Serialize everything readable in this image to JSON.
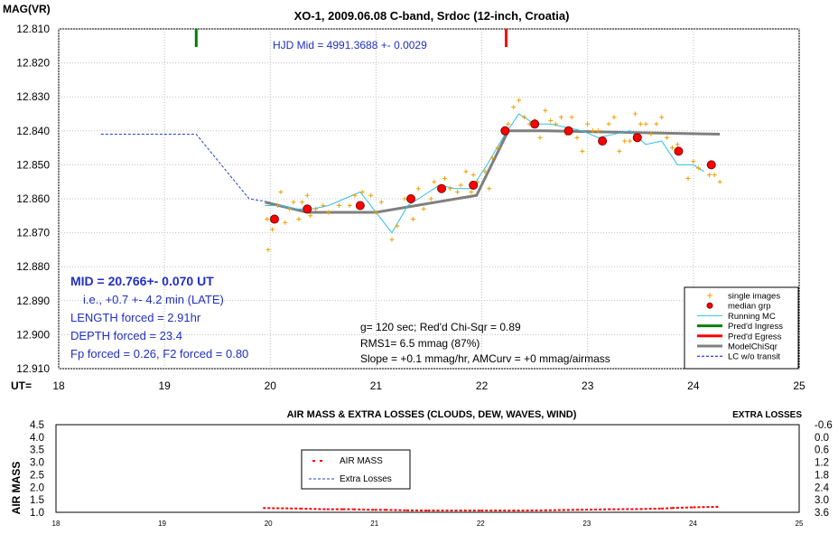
{
  "chart_data": [
    {
      "type": "scatter",
      "title": "XO-1, 2009.06.08 C-band, Srdoc (12-inch, Croatia)",
      "ylabel": "MAG(VR)",
      "xlabel": "UT=",
      "xlim": [
        18,
        25
      ],
      "ylim": [
        12.91,
        12.81
      ],
      "y_inverted": true,
      "grid": true,
      "legend_position": "bottom-right",
      "x_ticks": [
        "18",
        "19",
        "20",
        "21",
        "22",
        "23",
        "24",
        "25"
      ],
      "y_ticks": [
        "12.810",
        "12.820",
        "12.830",
        "12.840",
        "12.850",
        "12.860",
        "12.870",
        "12.880",
        "12.890",
        "12.900",
        "12.910"
      ],
      "annotations": {
        "hjd": "HJD Mid = 4991.3688 +- 0.0029",
        "mid": "MID = 20.766+- 0.070 UT",
        "ie": "i.e., +0.7 +- 4.2 min (LATE)",
        "length": "LENGTH forced = 2.91hr",
        "depth": "DEPTH forced = 23.4",
        "fp": "Fp forced = 0.26, F2 forced = 0.80",
        "stats1": "g= 120 sec; Red'd Chi-Sqr = 0.89",
        "stats2": "RMS1= 6.5 mmag (87%)",
        "stats3": "Slope = +0.1 mmag/hr, AMCurv = +0 mmag/airmass"
      },
      "legend": [
        {
          "label": "single images",
          "symbol": "plus",
          "color": "#f0a000"
        },
        {
          "label": "median grp",
          "symbol": "dot",
          "color": "#ff0000"
        },
        {
          "label": "Running MC",
          "symbol": "line",
          "color": "#30c0e0"
        },
        {
          "label": "Pred'd Ingress",
          "symbol": "line",
          "color": "#008000"
        },
        {
          "label": "Pred'd Egress",
          "symbol": "line",
          "color": "#ff0000"
        },
        {
          "label": "ModelChiSqr",
          "symbol": "line",
          "color": "#808080"
        },
        {
          "label": "LC w/o transit",
          "symbol": "dash",
          "color": "#0000ff"
        }
      ],
      "series": [
        {
          "name": "single images",
          "points": [
            [
              19.97,
              12.866
            ],
            [
              19.98,
              12.875
            ],
            [
              20.02,
              12.869
            ],
            [
              20.07,
              12.862
            ],
            [
              20.1,
              12.858
            ],
            [
              20.14,
              12.867
            ],
            [
              20.18,
              12.863
            ],
            [
              20.22,
              12.861
            ],
            [
              20.27,
              12.866
            ],
            [
              20.3,
              12.861
            ],
            [
              20.35,
              12.859
            ],
            [
              20.38,
              12.865
            ],
            [
              20.43,
              12.863
            ],
            [
              20.5,
              12.862
            ],
            [
              20.55,
              12.864
            ],
            [
              20.65,
              12.862
            ],
            [
              20.75,
              12.862
            ],
            [
              20.8,
              12.859
            ],
            [
              20.87,
              12.858
            ],
            [
              20.95,
              12.859
            ],
            [
              21.0,
              12.864
            ],
            [
              21.05,
              12.861
            ],
            [
              21.15,
              12.872
            ],
            [
              21.2,
              12.868
            ],
            [
              21.27,
              12.86
            ],
            [
              21.35,
              12.866
            ],
            [
              21.4,
              12.857
            ],
            [
              21.45,
              12.863
            ],
            [
              21.52,
              12.86
            ],
            [
              21.55,
              12.855
            ],
            [
              21.6,
              12.857
            ],
            [
              21.65,
              12.854
            ],
            [
              21.7,
              12.857
            ],
            [
              21.77,
              12.858
            ],
            [
              21.8,
              12.856
            ],
            [
              21.85,
              12.852
            ],
            [
              21.9,
              12.858
            ],
            [
              21.92,
              12.853
            ],
            [
              21.96,
              12.855
            ],
            [
              22.03,
              12.852
            ],
            [
              22.07,
              12.857
            ],
            [
              22.1,
              12.848
            ],
            [
              22.15,
              12.845
            ],
            [
              22.2,
              12.84
            ],
            [
              22.25,
              12.838
            ],
            [
              22.3,
              12.833
            ],
            [
              22.35,
              12.831
            ],
            [
              22.4,
              12.836
            ],
            [
              22.45,
              12.838
            ],
            [
              22.5,
              12.837
            ],
            [
              22.55,
              12.842
            ],
            [
              22.6,
              12.834
            ],
            [
              22.65,
              12.837
            ],
            [
              22.7,
              12.838
            ],
            [
              22.75,
              12.836
            ],
            [
              22.8,
              12.841
            ],
            [
              22.85,
              12.836
            ],
            [
              22.9,
              12.842
            ],
            [
              22.95,
              12.846
            ],
            [
              23.0,
              12.838
            ],
            [
              23.05,
              12.84
            ],
            [
              23.1,
              12.84
            ],
            [
              23.15,
              12.842
            ],
            [
              23.2,
              12.838
            ],
            [
              23.25,
              12.836
            ],
            [
              23.3,
              12.846
            ],
            [
              23.35,
              12.843
            ],
            [
              23.4,
              12.843
            ],
            [
              23.45,
              12.835
            ],
            [
              23.5,
              12.838
            ],
            [
              23.55,
              12.838
            ],
            [
              23.6,
              12.841
            ],
            [
              23.65,
              12.838
            ],
            [
              23.7,
              12.836
            ],
            [
              23.75,
              12.842
            ],
            [
              23.8,
              12.845
            ],
            [
              23.85,
              12.844
            ],
            [
              23.95,
              12.854
            ],
            [
              24.0,
              12.849
            ],
            [
              24.05,
              12.851
            ],
            [
              24.15,
              12.853
            ],
            [
              24.2,
              12.853
            ],
            [
              24.25,
              12.855
            ]
          ]
        },
        {
          "name": "median grp",
          "points": [
            [
              20.04,
              12.866
            ],
            [
              20.35,
              12.863
            ],
            [
              20.85,
              12.862
            ],
            [
              21.33,
              12.86
            ],
            [
              21.62,
              12.857
            ],
            [
              21.92,
              12.856
            ],
            [
              22.22,
              12.84
            ],
            [
              22.5,
              12.838
            ],
            [
              22.82,
              12.84
            ],
            [
              23.14,
              12.843
            ],
            [
              23.47,
              12.842
            ],
            [
              23.86,
              12.846
            ],
            [
              24.17,
              12.85
            ]
          ]
        },
        {
          "name": "Running MC",
          "points": [
            [
              19.95,
              12.862
            ],
            [
              20.1,
              12.862
            ],
            [
              20.25,
              12.863
            ],
            [
              20.4,
              12.863
            ],
            [
              20.55,
              12.862
            ],
            [
              20.7,
              12.86
            ],
            [
              20.85,
              12.858
            ],
            [
              21.0,
              12.864
            ],
            [
              21.15,
              12.87
            ],
            [
              21.3,
              12.862
            ],
            [
              21.45,
              12.859
            ],
            [
              21.6,
              12.856
            ],
            [
              21.75,
              12.857
            ],
            [
              21.9,
              12.857
            ],
            [
              22.05,
              12.85
            ],
            [
              22.2,
              12.842
            ],
            [
              22.35,
              12.835
            ],
            [
              22.5,
              12.838
            ],
            [
              22.65,
              12.838
            ],
            [
              22.8,
              12.839
            ],
            [
              22.95,
              12.84
            ],
            [
              23.1,
              12.842
            ],
            [
              23.25,
              12.841
            ],
            [
              23.4,
              12.84
            ],
            [
              23.55,
              12.844
            ],
            [
              23.7,
              12.843
            ],
            [
              23.85,
              12.85
            ],
            [
              24.0,
              12.85
            ],
            [
              24.1,
              12.852
            ]
          ]
        },
        {
          "name": "ModelChiSqr",
          "points": [
            [
              19.95,
              12.861
            ],
            [
              20.35,
              12.864
            ],
            [
              21.0,
              12.864
            ],
            [
              21.95,
              12.859
            ],
            [
              22.25,
              12.84
            ],
            [
              22.6,
              12.84
            ],
            [
              24.25,
              12.841
            ]
          ]
        },
        {
          "name": "LC w/o transit",
          "points": [
            [
              18.4,
              12.841
            ],
            [
              19.3,
              12.841
            ],
            [
              19.8,
              12.86
            ],
            [
              20.0,
              12.861
            ]
          ]
        }
      ],
      "vertical_markers": [
        {
          "name": "Pred'd Ingress",
          "x": 19.3,
          "color": "#008000"
        },
        {
          "name": "Pred'd Egress",
          "x": 22.23,
          "color": "#ff0000"
        }
      ]
    },
    {
      "type": "line",
      "title": "AIR MASS & EXTRA LOSSES (CLOUDS, DEW, WAVES, WIND)",
      "right_title": "EXTRA LOSSES",
      "ylabel": "AIR MASS",
      "xlim": [
        18,
        25
      ],
      "ylim": [
        1.0,
        4.5
      ],
      "y2lim": [
        3.6,
        -0.6
      ],
      "x_ticks": [
        "18",
        "19",
        "20",
        "21",
        "22",
        "23",
        "24",
        "25"
      ],
      "y_ticks": [
        "4.5",
        "4.0",
        "3.5",
        "3.0",
        "2.5",
        "2.0",
        "1.5",
        "1.0"
      ],
      "y2_ticks": [
        "-0.6",
        "0.0",
        "0.6",
        "1.2",
        "1.8",
        "2.4",
        "3.0",
        "3.6"
      ],
      "legend": [
        {
          "label": "AIR MASS",
          "color": "#ff0000"
        },
        {
          "label": "Extra Losses",
          "color": "#0000ff"
        }
      ],
      "series": [
        {
          "name": "AIR MASS",
          "x": [
            19.95,
            20.3,
            20.55,
            20.7,
            20.8,
            21.0,
            21.1,
            21.3,
            21.5,
            21.8,
            22.0,
            22.3,
            22.6,
            22.9,
            23.2,
            23.5,
            23.7,
            23.8,
            24.0,
            24.25
          ],
          "values": [
            1.17,
            1.15,
            1.12,
            1.12,
            1.12,
            1.1,
            1.1,
            1.08,
            1.07,
            1.07,
            1.07,
            1.07,
            1.08,
            1.1,
            1.12,
            1.13,
            1.15,
            1.17,
            1.2,
            1.22
          ]
        }
      ]
    }
  ]
}
